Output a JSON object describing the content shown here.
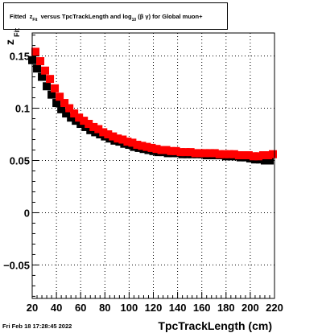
{
  "title": {
    "fitted": "Fitted",
    "z": "z",
    "z_sub": "Fit",
    "middle": "versus TpcTrackLength and log",
    "log_sub": "10",
    "beta": "(β",
    "gamma": "γ)",
    "suffix": "for Global muon+"
  },
  "timestamp": "Fri Feb 18 17:28:45 2022",
  "chart_data": {
    "type": "scatter",
    "title": "Fitted z_Fit versus TpcTrackLength and log10 (β γ) for Global muon+",
    "xlabel": "TpcTrackLength (cm)",
    "ylabel": "z_Fit",
    "ylabel_main": "z",
    "ylabel_sub": "Fit",
    "xlim": [
      20,
      220
    ],
    "ylim": [
      -0.082,
      0.172
    ],
    "xticks": [
      20,
      40,
      60,
      80,
      100,
      120,
      140,
      160,
      180,
      200,
      220
    ],
    "yticks": [
      -0.05,
      0,
      0.05,
      0.1,
      0.15
    ],
    "ytick_labels": [
      "−0.05",
      "0",
      "0.05",
      "0.1",
      "0.15"
    ],
    "grid": true,
    "series": [
      {
        "color": "#000000",
        "x": [
          22,
          26,
          30,
          34,
          38,
          42,
          46,
          50,
          54,
          58,
          62,
          66,
          70,
          74,
          78,
          82,
          86,
          90,
          94,
          98,
          102,
          106,
          110,
          114,
          118,
          122,
          126,
          130,
          134,
          138,
          142,
          146,
          150,
          154,
          158,
          162,
          166,
          170,
          174,
          178,
          182,
          186,
          190,
          194,
          198,
          202,
          206,
          210,
          214,
          218
        ],
        "y": [
          0.146,
          0.138,
          0.13,
          0.121,
          0.113,
          0.105,
          0.099,
          0.095,
          0.091,
          0.088,
          0.085,
          0.082,
          0.079,
          0.077,
          0.075,
          0.073,
          0.071,
          0.069,
          0.068,
          0.066,
          0.065,
          0.063,
          0.062,
          0.061,
          0.06,
          0.059,
          0.058,
          0.058,
          0.057,
          0.057,
          0.057,
          0.056,
          0.056,
          0.056,
          0.056,
          0.056,
          0.055,
          0.055,
          0.055,
          0.055,
          0.054,
          0.054,
          0.054,
          0.053,
          0.053,
          0.052,
          0.051,
          0.051,
          0.05,
          0.05
        ]
      },
      {
        "color": "#ff0000",
        "x": [
          22,
          26,
          30,
          34,
          38,
          42,
          46,
          50,
          54,
          58,
          62,
          66,
          70,
          74,
          78,
          82,
          86,
          90,
          94,
          98,
          102,
          106,
          110,
          114,
          118,
          122,
          126,
          130,
          134,
          138,
          142,
          146,
          150,
          154,
          158,
          162,
          166,
          170,
          174,
          178,
          182,
          186,
          190,
          194,
          198,
          202,
          206,
          210,
          214,
          218
        ],
        "y": [
          0.154,
          0.145,
          0.136,
          0.128,
          0.119,
          0.111,
          0.105,
          0.1,
          0.095,
          0.091,
          0.088,
          0.085,
          0.082,
          0.08,
          0.077,
          0.075,
          0.073,
          0.071,
          0.07,
          0.068,
          0.067,
          0.065,
          0.064,
          0.063,
          0.062,
          0.061,
          0.06,
          0.06,
          0.059,
          0.059,
          0.058,
          0.058,
          0.058,
          0.057,
          0.057,
          0.057,
          0.057,
          0.057,
          0.056,
          0.056,
          0.056,
          0.056,
          0.055,
          0.055,
          0.055,
          0.054,
          0.054,
          0.055,
          0.055,
          0.056
        ]
      }
    ]
  }
}
